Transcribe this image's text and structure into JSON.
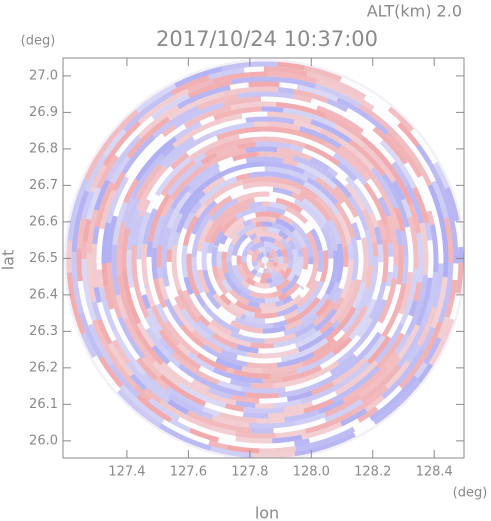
{
  "chart_data": {
    "type": "ppi",
    "title": "2017/10/24 10:37:00",
    "annotation": "ALT(km) 2.0",
    "xlabel": "lon",
    "ylabel": "lat",
    "xunit": "(deg)",
    "yunit": "(deg)",
    "xlim": [
      127.192,
      128.497
    ],
    "ylim": [
      25.953,
      27.049
    ],
    "xticks": [
      127.4,
      127.6,
      127.8,
      {
        "value": 128,
        "label": "128.0"
      },
      128.2,
      128.4
    ],
    "yticks": [
      {
        "value": 26,
        "label": "26.0"
      },
      26.1,
      26.2,
      26.3,
      26.4,
      26.5,
      26.6,
      26.7,
      26.8,
      26.9,
      {
        "value": 27,
        "label": "27.0"
      }
    ]
  }
}
